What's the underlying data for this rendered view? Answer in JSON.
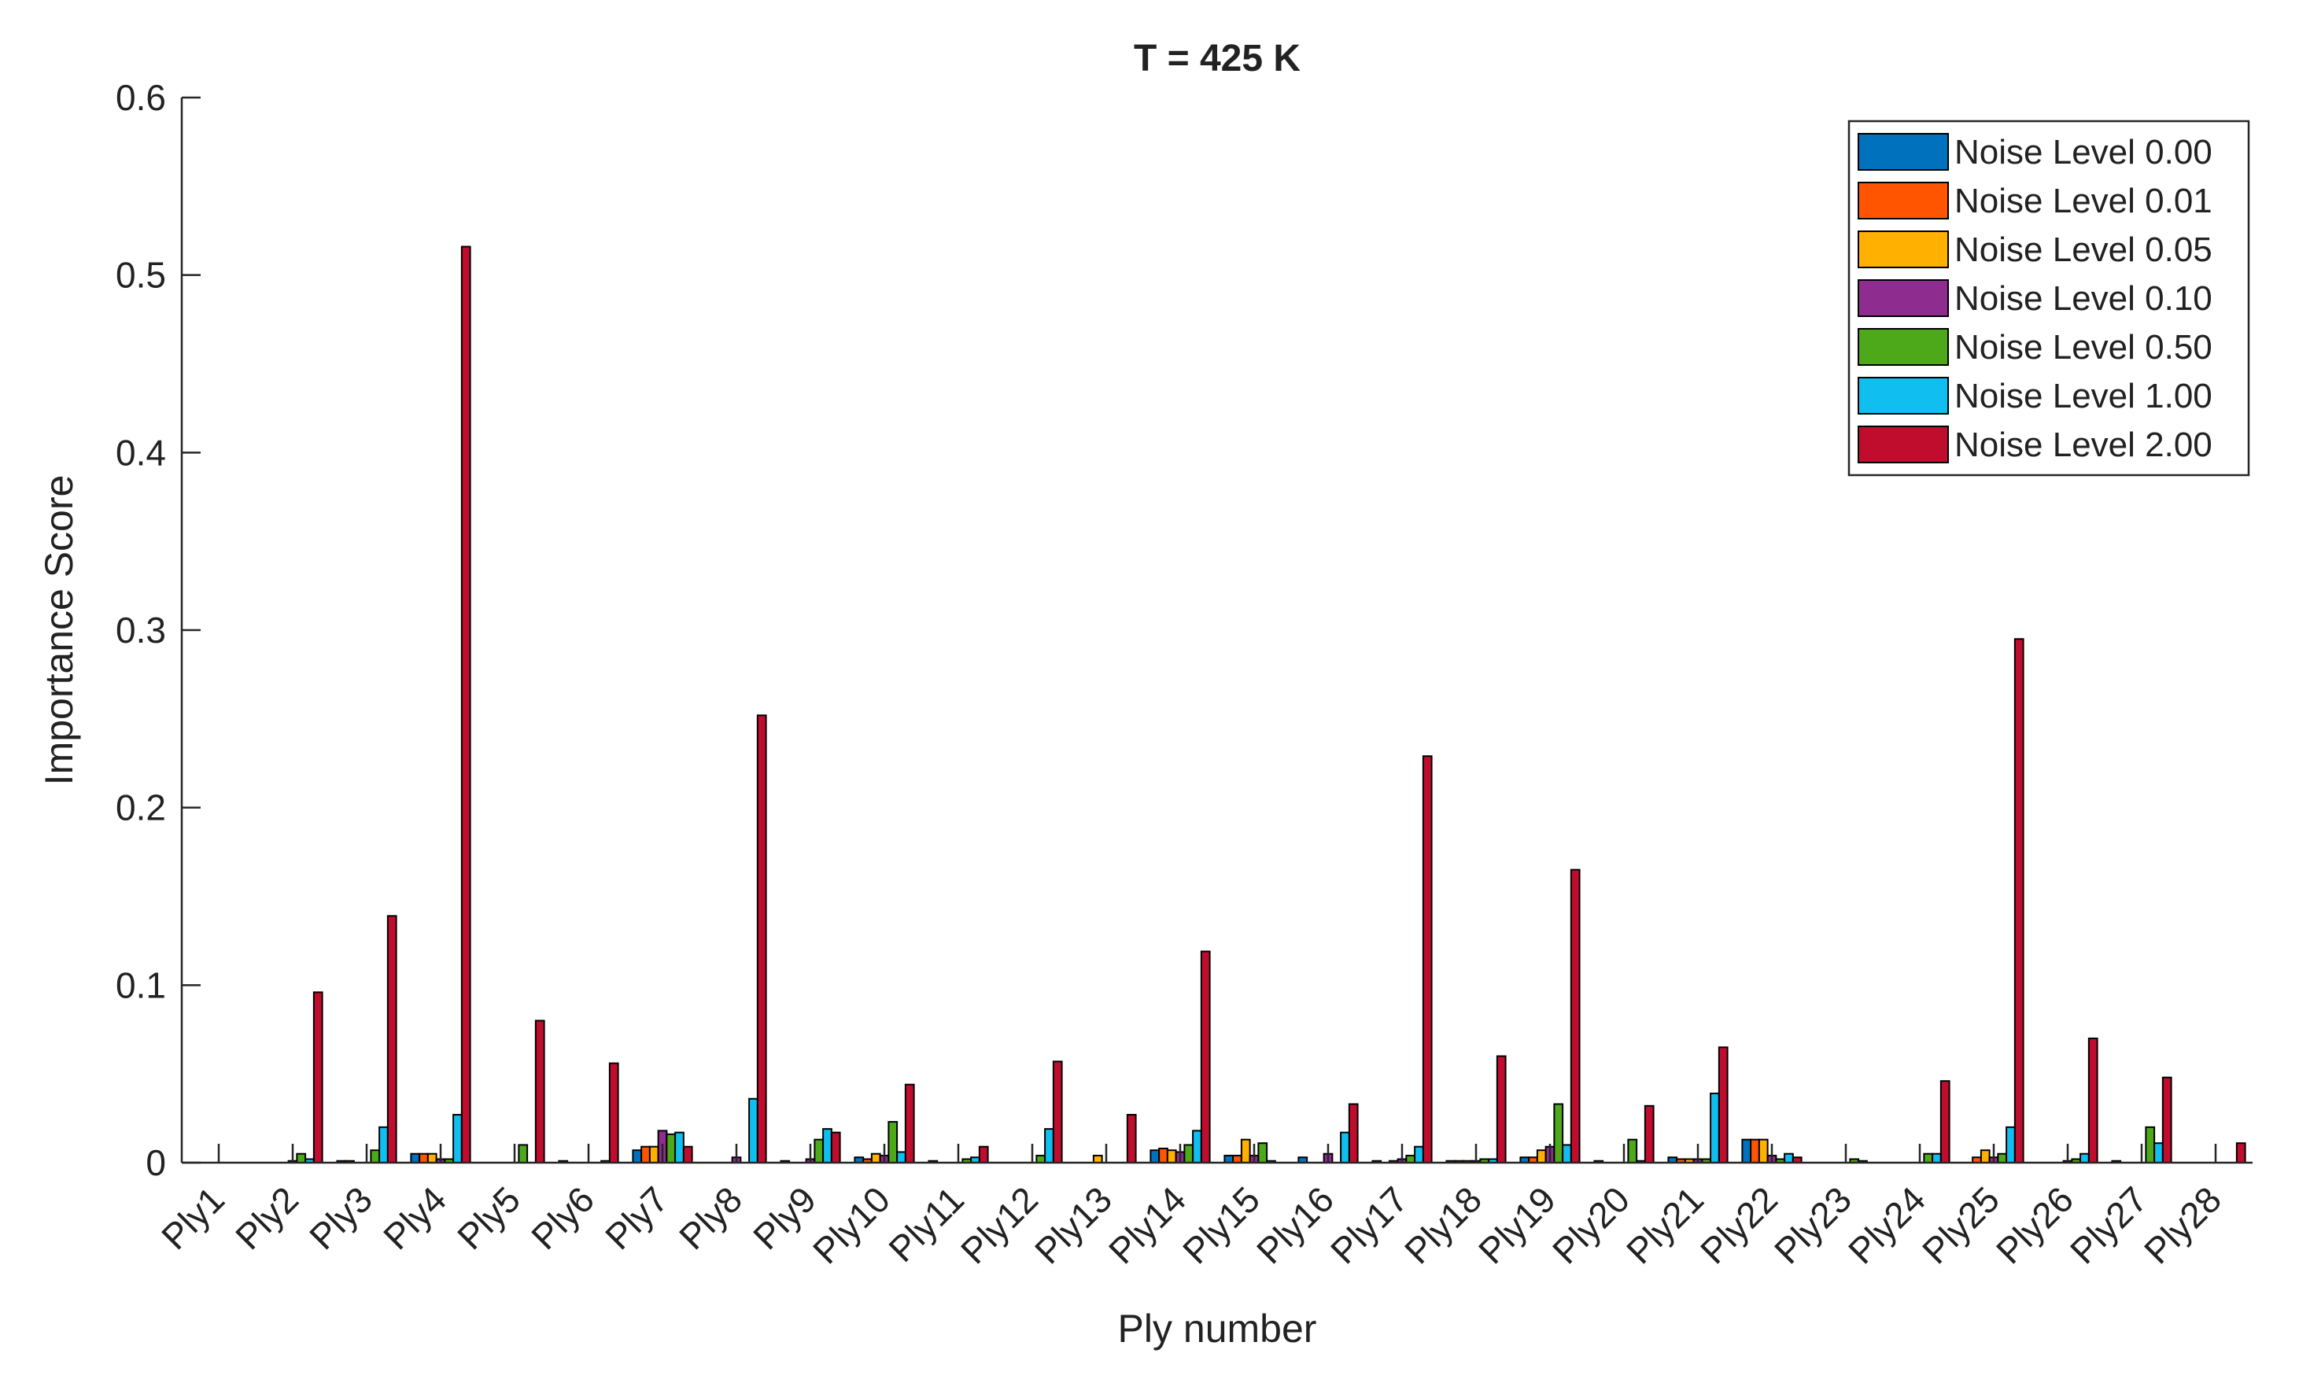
{
  "chart_data": {
    "type": "bar",
    "title": "T = 425 K",
    "xlabel": "Ply number",
    "ylabel": "Importance Score",
    "ylim": [
      0,
      0.6
    ],
    "yticks": [
      0,
      0.1,
      0.2,
      0.3,
      0.4,
      0.5,
      0.6
    ],
    "ytick_labels": [
      "0",
      "0.1",
      "0.2",
      "0.3",
      "0.4",
      "0.5",
      "0.6"
    ],
    "grid": false,
    "legend_position": "top-right",
    "categories": [
      "Ply1",
      "Ply2",
      "Ply3",
      "Ply4",
      "Ply5",
      "Ply6",
      "Ply7",
      "Ply8",
      "Ply9",
      "Ply10",
      "Ply11",
      "Ply12",
      "Ply13",
      "Ply14",
      "Ply15",
      "Ply16",
      "Ply17",
      "Ply18",
      "Ply19",
      "Ply20",
      "Ply21",
      "Ply22",
      "Ply23",
      "Ply24",
      "Ply25",
      "Ply26",
      "Ply27",
      "Ply28"
    ],
    "series": [
      {
        "name": "Noise Level 0.00",
        "color": "#0072BD",
        "values": [
          0,
          0,
          0.001,
          0.005,
          0,
          0.001,
          0.007,
          0,
          0.001,
          0.003,
          0.001,
          0,
          0,
          0.007,
          0.004,
          0.003,
          0.001,
          0.001,
          0.003,
          0.001,
          0.003,
          0.013,
          0,
          0,
          0,
          0,
          0.001,
          0
        ]
      },
      {
        "name": "Noise Level 0.01",
        "color": "#FF5500",
        "values": [
          0,
          0,
          0.001,
          0.005,
          0,
          0,
          0.009,
          0,
          0,
          0.002,
          0,
          0,
          0,
          0.008,
          0.004,
          0,
          0,
          0.001,
          0.003,
          0,
          0.002,
          0.013,
          0,
          0,
          0.003,
          0,
          0,
          0
        ]
      },
      {
        "name": "Noise Level 0.05",
        "color": "#FFB000",
        "values": [
          0,
          0,
          0,
          0.005,
          0,
          0,
          0.009,
          0,
          0,
          0.005,
          0,
          0,
          0.004,
          0.007,
          0.013,
          0,
          0.001,
          0.001,
          0.007,
          0,
          0.002,
          0.013,
          0,
          0,
          0.007,
          0,
          0,
          0
        ]
      },
      {
        "name": "Noise Level 0.10",
        "color": "#8E2C90",
        "values": [
          0,
          0.001,
          0,
          0.002,
          0,
          0,
          0.018,
          0.003,
          0.002,
          0.004,
          0,
          0,
          0,
          0.006,
          0.004,
          0.005,
          0.002,
          0.001,
          0.009,
          0,
          0.002,
          0.004,
          0,
          0,
          0.003,
          0.001,
          0,
          0
        ]
      },
      {
        "name": "Noise Level 0.50",
        "color": "#4DA91A",
        "values": [
          0,
          0.005,
          0.007,
          0.002,
          0.01,
          0,
          0.016,
          0,
          0.013,
          0.023,
          0.002,
          0.004,
          0,
          0.01,
          0.011,
          0,
          0.004,
          0.002,
          0.033,
          0.013,
          0.002,
          0.002,
          0.002,
          0.005,
          0.005,
          0.002,
          0.02,
          0
        ]
      },
      {
        "name": "Noise Level 1.00",
        "color": "#10BEEF",
        "values": [
          0,
          0.002,
          0.02,
          0.027,
          0,
          0.001,
          0.017,
          0.036,
          0.019,
          0.006,
          0.003,
          0.019,
          0,
          0.018,
          0.001,
          0.017,
          0.009,
          0.002,
          0.01,
          0.001,
          0.039,
          0.005,
          0.001,
          0.005,
          0.02,
          0.005,
          0.011,
          0
        ]
      },
      {
        "name": "Noise Level 2.00",
        "color": "#C00D2D",
        "values": [
          0,
          0.096,
          0.139,
          0.516,
          0.08,
          0.056,
          0.009,
          0.252,
          0.017,
          0.044,
          0.009,
          0.057,
          0.027,
          0.119,
          0,
          0.033,
          0.229,
          0.06,
          0.165,
          0.032,
          0.065,
          0.003,
          0,
          0.046,
          0.295,
          0.07,
          0.048,
          0.011
        ]
      }
    ]
  }
}
